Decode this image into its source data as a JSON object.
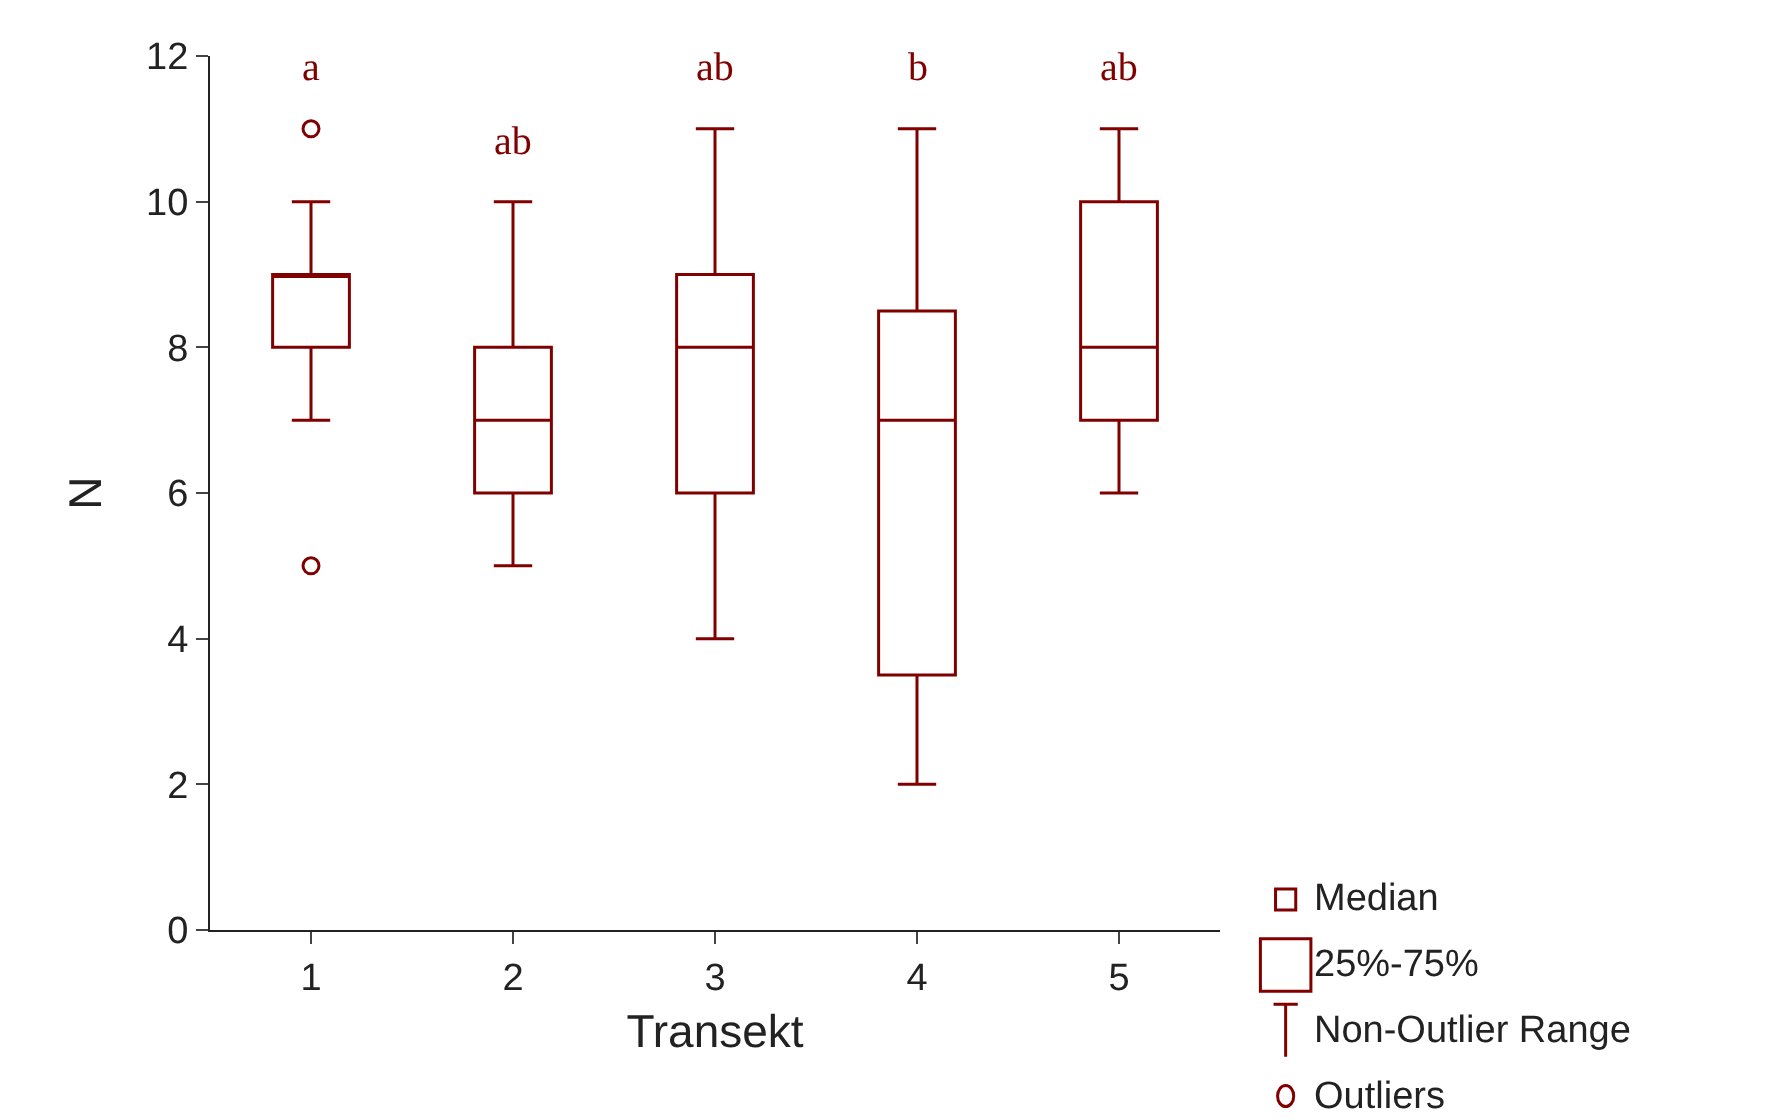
{
  "chart_data": {
    "type": "box",
    "xlabel": "Transekt",
    "ylabel": "N",
    "categories": [
      "1",
      "2",
      "3",
      "4",
      "5"
    ],
    "series": [
      {
        "color": "#800000",
        "boxes": [
          {
            "low": 7,
            "q1": 8,
            "median": 9,
            "q3": 9,
            "high": 10,
            "outliers": [
              11,
              5
            ]
          },
          {
            "low": 5,
            "q1": 6,
            "median": 7,
            "q3": 8,
            "high": 10
          },
          {
            "low": 4,
            "q1": 6,
            "median": 8,
            "q3": 9,
            "high": 11
          },
          {
            "low": 2,
            "q1": 3.5,
            "median": 7,
            "q3": 8.5,
            "high": 11
          },
          {
            "low": 6,
            "q1": 7,
            "median": 8,
            "q3": 10,
            "high": 11
          }
        ]
      }
    ],
    "ylim": [
      0,
      12
    ],
    "yticks": [
      0,
      2,
      4,
      6,
      8,
      10,
      12
    ],
    "annotations": [
      "a",
      "ab",
      "ab",
      "b",
      "ab",
      "Median",
      "25%-75%",
      "Non-Outlier Range",
      "Outliers"
    ]
  }
}
